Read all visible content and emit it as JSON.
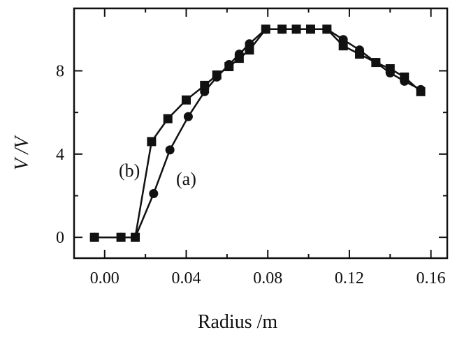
{
  "chart_data": {
    "type": "line",
    "title": "",
    "xlabel": "Radius /m",
    "ylabel": "V /V",
    "xlim": [
      -0.015,
      0.168
    ],
    "ylim": [
      -1,
      11
    ],
    "xticks": [
      0.0,
      0.04,
      0.08,
      0.12,
      0.16
    ],
    "xtick_labels": [
      "0.00",
      "0.04",
      "0.08",
      "0.12",
      "0.16"
    ],
    "yticks": [
      0,
      4,
      8
    ],
    "ytick_labels": [
      "0",
      "4",
      "8"
    ],
    "grid": false,
    "legend": "none",
    "annotations": [
      {
        "text": "(b)",
        "series": "b"
      },
      {
        "text": "(a)",
        "series": "a"
      }
    ],
    "series": [
      {
        "id": "a",
        "marker": "circle",
        "color": "#111111",
        "x": [
          -0.005,
          0.008,
          0.015,
          0.024,
          0.032,
          0.041,
          0.049,
          0.055,
          0.061,
          0.066,
          0.071,
          0.079,
          0.087,
          0.094,
          0.101,
          0.109,
          0.117,
          0.125,
          0.133,
          0.14,
          0.147,
          0.155
        ],
        "y": [
          0.0,
          0.0,
          0.0,
          2.1,
          4.2,
          5.8,
          7.0,
          7.7,
          8.3,
          8.8,
          9.3,
          10.0,
          10.0,
          10.0,
          10.0,
          10.0,
          9.5,
          9.0,
          8.4,
          7.9,
          7.5,
          7.1
        ]
      },
      {
        "id": "b",
        "marker": "square",
        "color": "#111111",
        "x": [
          -0.005,
          0.008,
          0.015,
          0.023,
          0.031,
          0.04,
          0.049,
          0.055,
          0.061,
          0.066,
          0.071,
          0.079,
          0.087,
          0.094,
          0.101,
          0.109,
          0.117,
          0.125,
          0.133,
          0.14,
          0.147,
          0.155
        ],
        "y": [
          0.0,
          0.0,
          0.0,
          4.6,
          5.7,
          6.6,
          7.3,
          7.8,
          8.2,
          8.6,
          9.0,
          10.0,
          10.0,
          10.0,
          10.0,
          10.0,
          9.2,
          8.8,
          8.4,
          8.1,
          7.7,
          7.0
        ]
      }
    ]
  }
}
